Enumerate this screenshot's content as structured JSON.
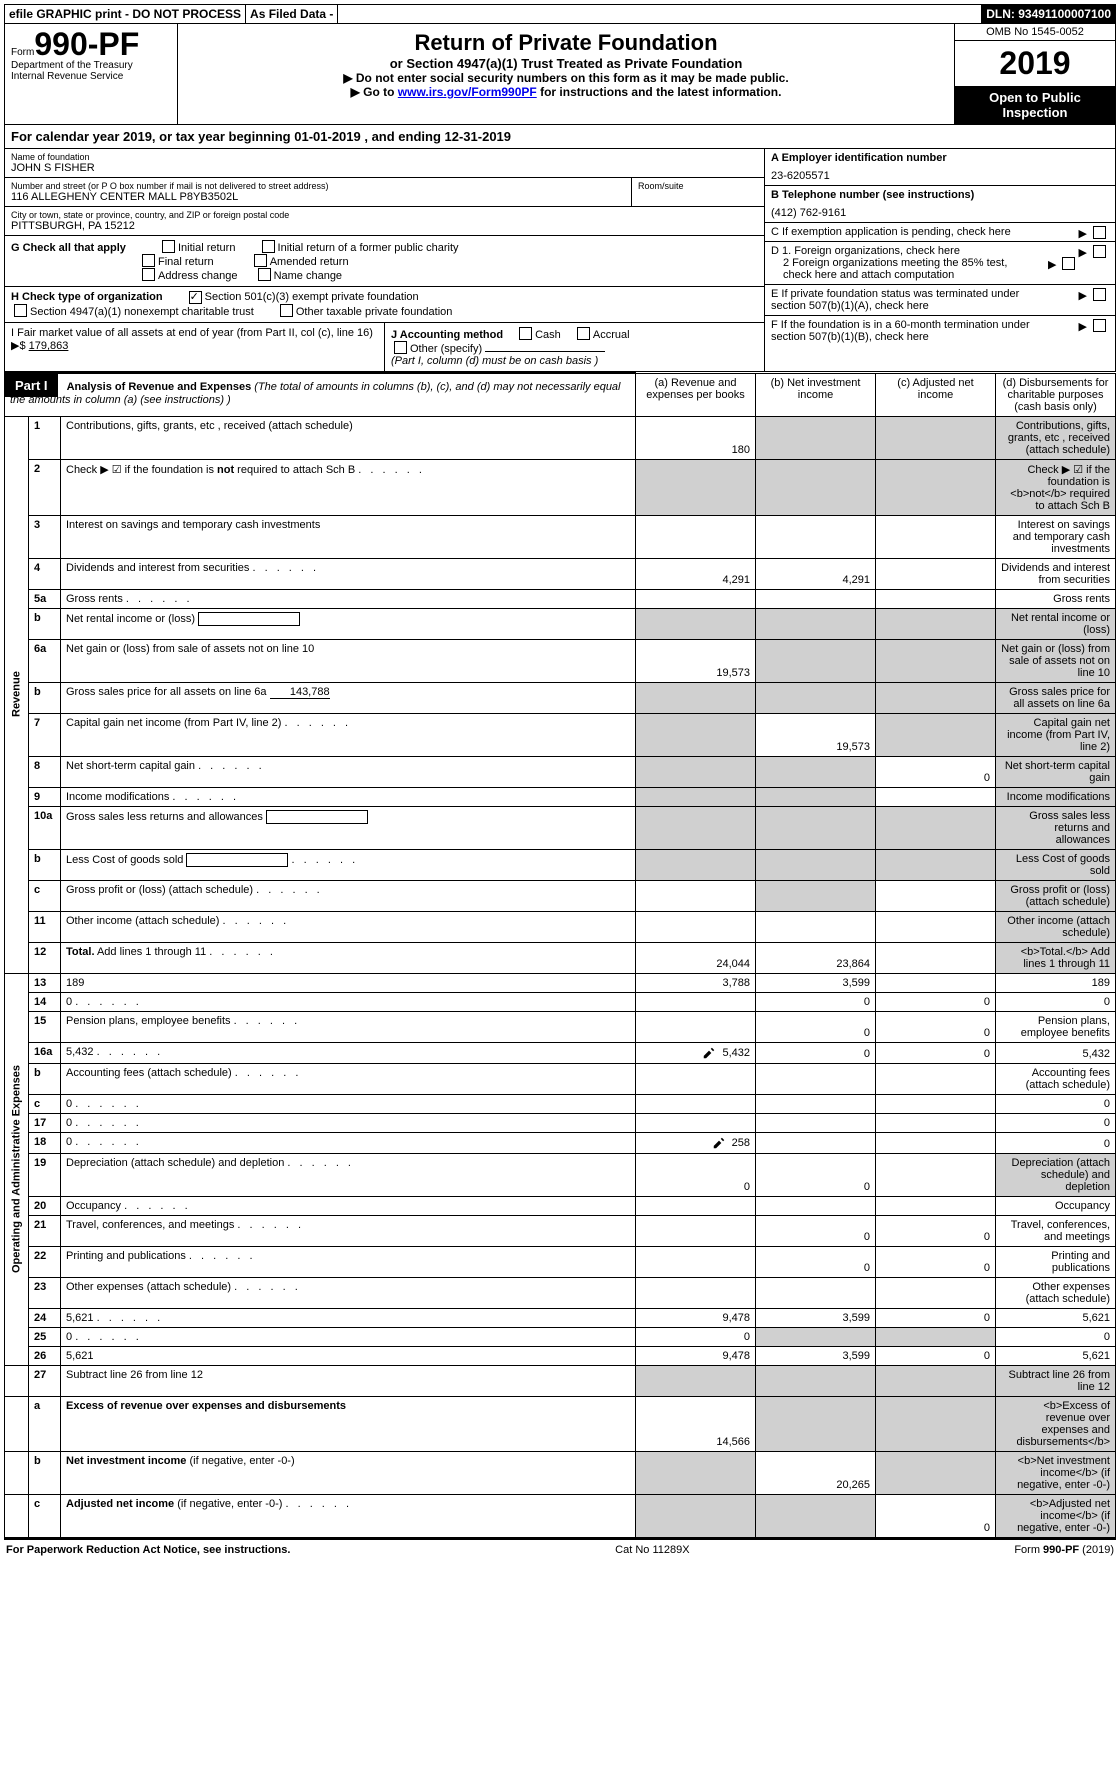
{
  "topbar": {
    "efile": "efile GRAPHIC print - DO NOT PROCESS",
    "asfiled": "As Filed Data -",
    "dln": "DLN: 93491100007100"
  },
  "formbox": {
    "form_prefix": "Form",
    "form_number": "990-PF",
    "dept": "Department of the Treasury",
    "irs": "Internal Revenue Service",
    "title": "Return of Private Foundation",
    "subtitle": "or Section 4947(a)(1) Trust Treated as Private Foundation",
    "warn1": "▶ Do not enter social security numbers on this form as it may be made public.",
    "warn2_pre": "▶ Go to ",
    "warn2_link": "www.irs.gov/Form990PF",
    "warn2_post": " for instructions and the latest information.",
    "omb": "OMB No 1545-0052",
    "year": "2019",
    "open": "Open to Public Inspection"
  },
  "calendar": {
    "pre": "For calendar year 2019, or tax year beginning ",
    "begin": "01-01-2019",
    "mid": " , and ending ",
    "end": "12-31-2019"
  },
  "header": {
    "name_lbl": "Name of foundation",
    "name": "JOHN S FISHER",
    "addr_lbl": "Number and street (or P O  box number if mail is not delivered to street address)",
    "addr": "116 ALLEGHENY CENTER MALL P8YB3502L",
    "room_lbl": "Room/suite",
    "city_lbl": "City or town, state or province, country, and ZIP or foreign postal code",
    "city": "PITTSBURGH, PA  15212",
    "A_lbl": "A Employer identification number",
    "A_val": "23-6205571",
    "B_lbl": "B Telephone number (see instructions)",
    "B_val": "(412) 762-9161",
    "C_lbl": "C If exemption application is pending, check here",
    "D1_lbl": "D 1. Foreign organizations, check here",
    "D2_lbl": "2 Foreign organizations meeting the 85% test, check here and attach computation",
    "E_lbl": "E If private foundation status was terminated under section 507(b)(1)(A), check here",
    "F_lbl": "F If the foundation is in a 60-month termination under section 507(b)(1)(B), check here"
  },
  "checks": {
    "G": "G Check all that apply",
    "g_opts": [
      "Initial return",
      "Initial return of a former public charity",
      "Final return",
      "Amended return",
      "Address change",
      "Name change"
    ],
    "H": "H Check type of organization",
    "h1": "Section 501(c)(3) exempt private foundation",
    "h2": "Section 4947(a)(1) nonexempt charitable trust",
    "h3": "Other taxable private foundation",
    "I": "I Fair market value of all assets at end of year (from Part II, col  (c), line 16) ▶$",
    "I_val": "179,863",
    "J": "J Accounting method",
    "j_opts": [
      "Cash",
      "Accrual"
    ],
    "j_other": "Other (specify)",
    "j_note": "(Part I, column (d) must be on cash basis )"
  },
  "part1": {
    "tag": "Part I",
    "title": "Analysis of Revenue and Expenses",
    "note": "(The total of amounts in columns (b), (c), and (d) may not necessarily equal the amounts in column (a) (see instructions) )",
    "cols": {
      "a": "(a) Revenue and expenses per books",
      "b": "(b) Net investment income",
      "c": "(c) Adjusted net income",
      "d": "(d) Disbursements for charitable purposes (cash basis only)"
    }
  },
  "sections": {
    "revenue": "Revenue",
    "opex": "Operating and Administrative Expenses"
  },
  "rows": [
    {
      "sec": "rev",
      "n": "1",
      "d": "Contributions, gifts, grants, etc , received (attach schedule)",
      "a": "180",
      "grey_bcd": true
    },
    {
      "sec": "rev",
      "n": "2",
      "d": "Check ▶ ☑ if the foundation is <b>not</b> required to attach Sch B",
      "dots": true,
      "grey_abcd": true
    },
    {
      "sec": "rev",
      "n": "3",
      "d": "Interest on savings and temporary cash investments"
    },
    {
      "sec": "rev",
      "n": "4",
      "d": "Dividends and interest from securities",
      "dots": true,
      "a": "4,291",
      "b": "4,291"
    },
    {
      "sec": "rev",
      "n": "5a",
      "d": "Gross rents",
      "dots": true
    },
    {
      "sec": "rev",
      "n": "b",
      "d": "Net rental income or (loss)",
      "inline_box": true,
      "grey_abcd": true
    },
    {
      "sec": "rev",
      "n": "6a",
      "d": "Net gain or (loss) from sale of assets not on line 10",
      "a": "19,573",
      "grey_bcd": true
    },
    {
      "sec": "rev",
      "n": "b",
      "d": "Gross sales price for all assets on line 6a",
      "inline_val": "143,788",
      "grey_abcd": true
    },
    {
      "sec": "rev",
      "n": "7",
      "d": "Capital gain net income (from Part IV, line 2)",
      "dots": true,
      "b": "19,573",
      "grey_a": true,
      "grey_cd": true
    },
    {
      "sec": "rev",
      "n": "8",
      "d": "Net short-term capital gain",
      "dots": true,
      "c": "0",
      "grey_ab": true,
      "grey_d": true
    },
    {
      "sec": "rev",
      "n": "9",
      "d": "Income modifications",
      "dots": true,
      "grey_ab": true,
      "grey_d": true
    },
    {
      "sec": "rev",
      "n": "10a",
      "d": "Gross sales less returns and allowances",
      "inline_box": true,
      "grey_abcd": true
    },
    {
      "sec": "rev",
      "n": "b",
      "d": "Less  Cost of goods sold",
      "dots": true,
      "inline_box": true,
      "grey_abcd": true
    },
    {
      "sec": "rev",
      "n": "c",
      "d": "Gross profit or (loss) (attach schedule)",
      "dots": true,
      "grey_b": true,
      "grey_d": true
    },
    {
      "sec": "rev",
      "n": "11",
      "d": "Other income (attach schedule)",
      "dots": true,
      "grey_d": true
    },
    {
      "sec": "rev",
      "n": "12",
      "d": "<b>Total.</b> Add lines 1 through 11",
      "dots": true,
      "a": "24,044",
      "b": "23,864",
      "grey_d": true,
      "bold": true
    },
    {
      "sec": "op",
      "n": "13",
      "d": "189",
      "a": "3,788",
      "b": "3,599"
    },
    {
      "sec": "op",
      "n": "14",
      "d": "0",
      "dots": true,
      "b": "0",
      "c": "0"
    },
    {
      "sec": "op",
      "n": "15",
      "d": "Pension plans, employee benefits",
      "dots": true,
      "b": "0",
      "c": "0"
    },
    {
      "sec": "op",
      "n": "16a",
      "d": "5,432",
      "dots": true,
      "pen": true,
      "a": "5,432",
      "b": "0",
      "c": "0"
    },
    {
      "sec": "op",
      "n": "b",
      "d": "Accounting fees (attach schedule)",
      "dots": true
    },
    {
      "sec": "op",
      "n": "c",
      "d": "0",
      "dots": true
    },
    {
      "sec": "op",
      "n": "17",
      "d": "0",
      "dots": true
    },
    {
      "sec": "op",
      "n": "18",
      "d": "0",
      "dots": true,
      "pen": true,
      "a": "258"
    },
    {
      "sec": "op",
      "n": "19",
      "d": "Depreciation (attach schedule) and depletion",
      "dots": true,
      "a": "0",
      "b": "0",
      "grey_d": true
    },
    {
      "sec": "op",
      "n": "20",
      "d": "Occupancy",
      "dots": true
    },
    {
      "sec": "op",
      "n": "21",
      "d": "Travel, conferences, and meetings",
      "dots": true,
      "b": "0",
      "c": "0"
    },
    {
      "sec": "op",
      "n": "22",
      "d": "Printing and publications",
      "dots": true,
      "b": "0",
      "c": "0"
    },
    {
      "sec": "op",
      "n": "23",
      "d": "Other expenses (attach schedule)",
      "dots": true
    },
    {
      "sec": "op",
      "n": "24",
      "d": "5,621",
      "dots": true,
      "a": "9,478",
      "b": "3,599",
      "c": "0"
    },
    {
      "sec": "op",
      "n": "25",
      "d": "0",
      "dots": true,
      "a": "0",
      "grey_bc": true
    },
    {
      "sec": "op",
      "n": "26",
      "d": "5,621",
      "a": "9,478",
      "b": "3,599",
      "c": "0"
    },
    {
      "sec": "sum",
      "n": "27",
      "d": "Subtract line 26 from line 12",
      "grey_abcd": true
    },
    {
      "sec": "sum",
      "n": "a",
      "d": "<b>Excess of revenue over expenses and disbursements</b>",
      "a": "14,566",
      "grey_bcd": true
    },
    {
      "sec": "sum",
      "n": "b",
      "d": "<b>Net investment income</b> (if negative, enter -0-)",
      "b": "20,265",
      "grey_a": true,
      "grey_cd": true
    },
    {
      "sec": "sum",
      "n": "c",
      "d": "<b>Adjusted net income</b> (if negative, enter -0-)",
      "dots": true,
      "c": "0",
      "grey_ab": true,
      "grey_d": true
    }
  ],
  "footer": {
    "left": "For Paperwork Reduction Act Notice, see instructions.",
    "mid": "Cat No 11289X",
    "right": "Form 990-PF (2019)"
  },
  "colors": {
    "grey": "#d0d0d0"
  }
}
